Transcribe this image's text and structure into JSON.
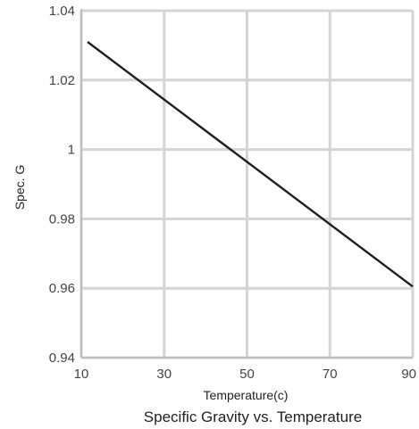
{
  "chart_data": {
    "type": "line",
    "title": "Specific Gravity vs. Temperature",
    "xlabel": "Temperature(c)",
    "ylabel": "Spec. G",
    "xlim": [
      10,
      90
    ],
    "ylim": [
      0.94,
      1.04
    ],
    "xticks": [
      10,
      30,
      50,
      70,
      90
    ],
    "yticks": [
      0.94,
      0.96,
      0.98,
      1.0,
      1.02,
      1.04
    ],
    "xtick_labels": [
      "10",
      "30",
      "50",
      "70",
      "90"
    ],
    "ytick_labels": [
      "0.94",
      "0.96",
      "0.98",
      "1",
      "1.02",
      "1.04"
    ],
    "grid": true,
    "legend": "none",
    "colors": {
      "line": "#1f1f1f",
      "grid": "#d4d4d4",
      "axis": "#bdbdbd"
    },
    "series": [
      {
        "x": [
          11.5,
          90
        ],
        "y": [
          1.031,
          0.9605
        ]
      }
    ]
  }
}
